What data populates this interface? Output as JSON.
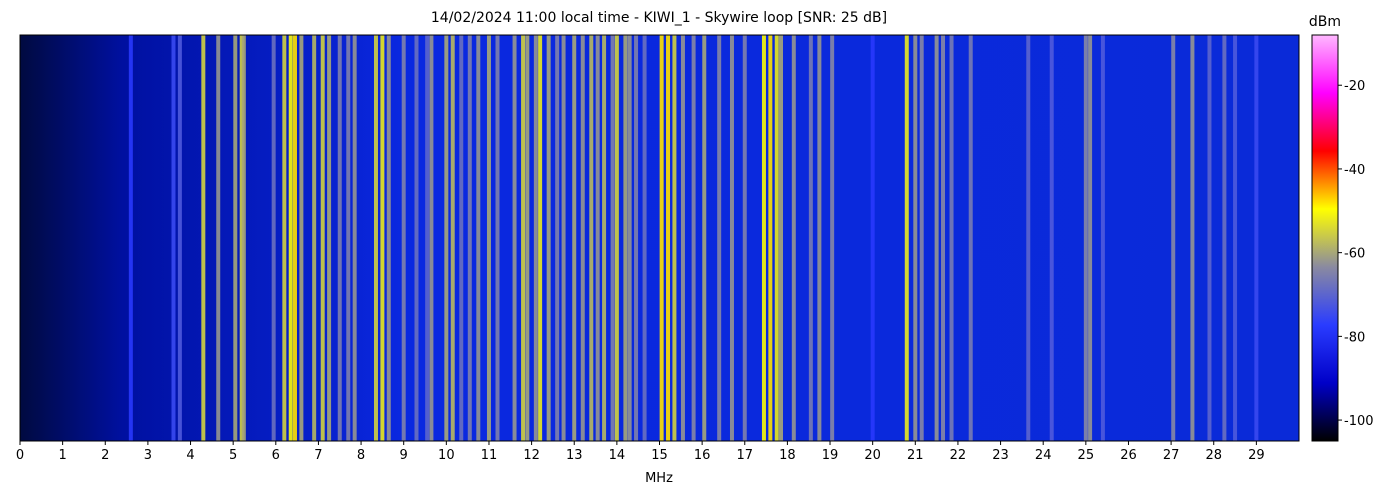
{
  "chart_data": {
    "type": "spectrogram",
    "title": "14/02/2024 11:00 local time - KIWI_1 - Skywire loop [SNR: 25 dB]",
    "xlabel": "MHz",
    "colorbar_label": "dBm",
    "xlim": [
      0,
      30
    ],
    "xticks": [
      0,
      1,
      2,
      3,
      4,
      5,
      6,
      7,
      8,
      9,
      10,
      11,
      12,
      13,
      14,
      15,
      16,
      17,
      18,
      19,
      20,
      21,
      22,
      23,
      24,
      25,
      26,
      27,
      28,
      29
    ],
    "zlim": [
      -105,
      -8
    ],
    "zticks": [
      -100,
      -80,
      -60,
      -40,
      -20
    ],
    "colormap": [
      "#000000",
      "#0000c8",
      "#2a3cff",
      "#8a8aa0",
      "#ffff00",
      "#ff0000",
      "#ff00ff",
      "#ffb8ff"
    ],
    "x": [
      2.6,
      3.6,
      3.75,
      4.3,
      4.65,
      5.05,
      5.2,
      5.25,
      5.95,
      6.2,
      6.35,
      6.45,
      6.6,
      6.9,
      7.1,
      7.25,
      7.5,
      7.7,
      7.85,
      8.35,
      8.5,
      8.65,
      9.0,
      9.3,
      9.55,
      9.65,
      10.0,
      10.15,
      10.35,
      10.55,
      10.75,
      11.0,
      11.2,
      11.6,
      11.8,
      11.9,
      12.1,
      12.2,
      12.4,
      12.6,
      12.75,
      13.0,
      13.2,
      13.4,
      13.55,
      13.7,
      13.9,
      14.0,
      14.2,
      14.3,
      14.45,
      14.65,
      15.05,
      15.2,
      15.35,
      15.55,
      15.8,
      16.05,
      16.4,
      16.7,
      17.0,
      17.45,
      17.6,
      17.75,
      17.85,
      18.15,
      18.55,
      18.75,
      19.05,
      20.0,
      20.8,
      21.0,
      21.15,
      21.5,
      21.65,
      21.85,
      22.3,
      23.65,
      24.2,
      25.0,
      25.1,
      25.4,
      27.05,
      27.5,
      27.9,
      28.25,
      28.5,
      29.0
    ],
    "values": [
      -78,
      -75,
      -72,
      -55,
      -62,
      -60,
      -55,
      -60,
      -68,
      -55,
      -50,
      -48,
      -60,
      -58,
      -55,
      -60,
      -65,
      -65,
      -62,
      -55,
      -52,
      -62,
      -65,
      -68,
      -70,
      -62,
      -60,
      -58,
      -68,
      -65,
      -62,
      -60,
      -65,
      -62,
      -55,
      -60,
      -62,
      -52,
      -60,
      -65,
      -62,
      -60,
      -62,
      -58,
      -62,
      -58,
      -65,
      -55,
      -60,
      -62,
      -65,
      -68,
      -48,
      -48,
      -55,
      -62,
      -64,
      -60,
      -64,
      -62,
      -65,
      -50,
      -48,
      -52,
      -60,
      -62,
      -66,
      -62,
      -64,
      -78,
      -52,
      -62,
      -64,
      -62,
      -64,
      -66,
      -66,
      -70,
      -72,
      -64,
      -62,
      -72,
      -64,
      -62,
      -70,
      -68,
      -72,
      -75
    ]
  }
}
